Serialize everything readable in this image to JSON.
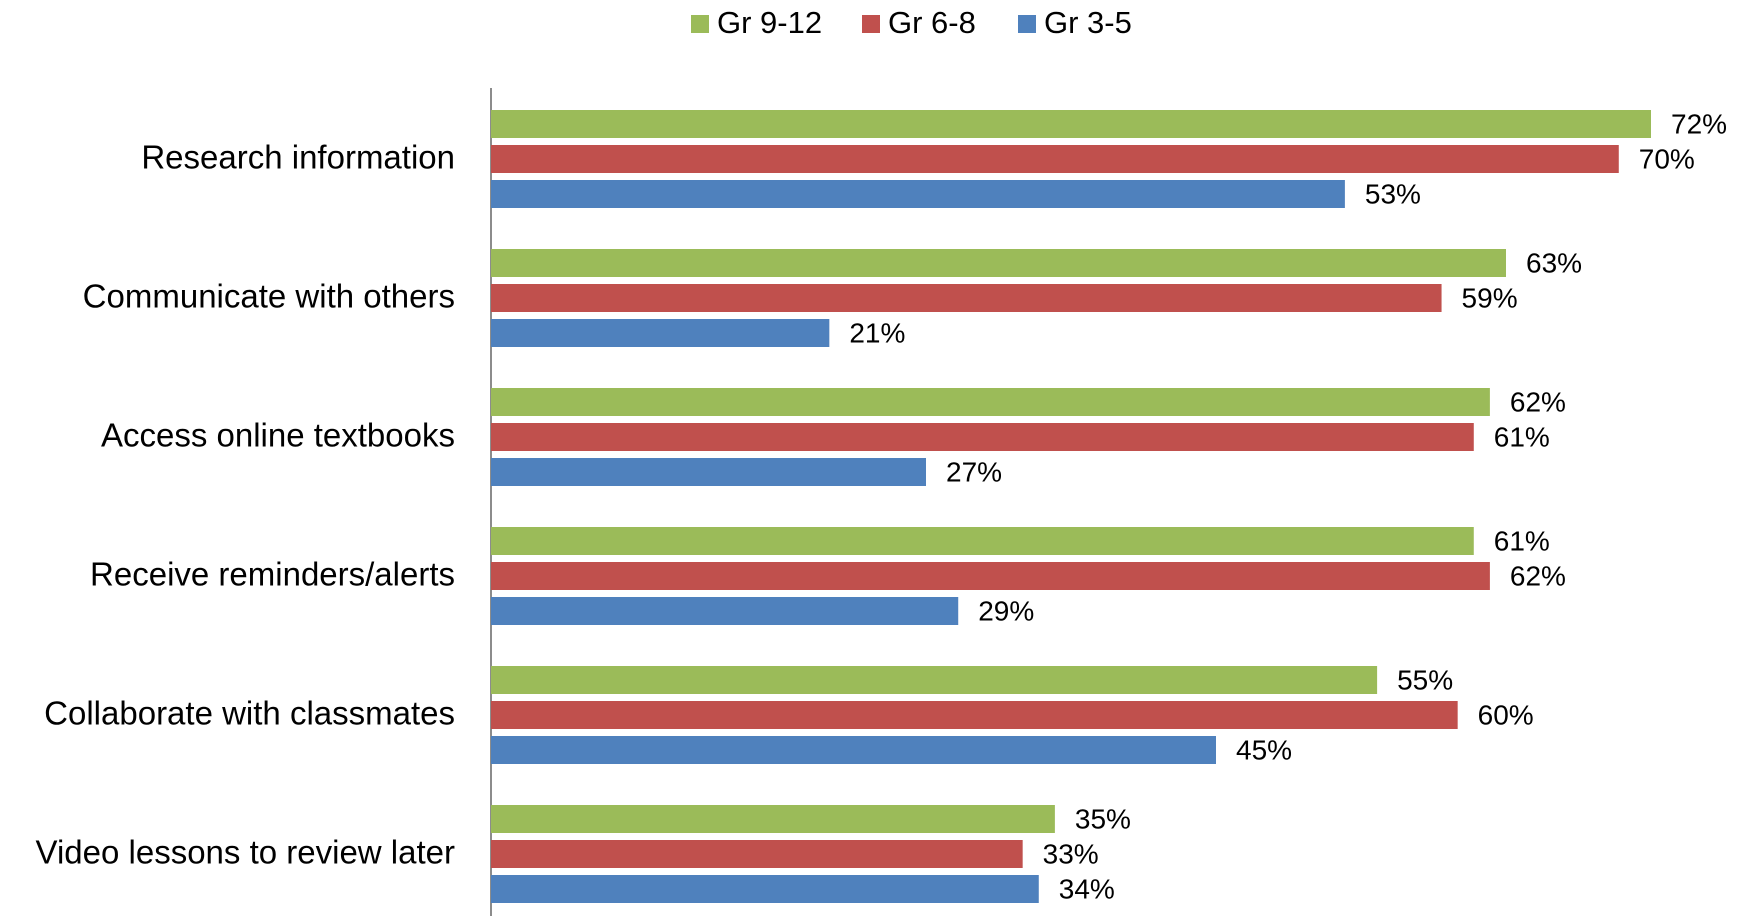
{
  "chart_data": {
    "type": "bar",
    "orientation": "horizontal",
    "title": "",
    "xlabel": "",
    "ylabel": "",
    "value_suffix": "%",
    "xlim": [
      0,
      72
    ],
    "grid": false,
    "legend_position": "top",
    "categories": [
      "Research information",
      "Communicate with others",
      "Access online textbooks",
      "Receive reminders/alerts",
      "Collaborate with classmates",
      "Video lessons to review later"
    ],
    "series": [
      {
        "name": "Gr 9-12",
        "color": "#9bbb59",
        "values": [
          72,
          63,
          62,
          61,
          55,
          35
        ]
      },
      {
        "name": "Gr 6-8",
        "color": "#c0504d",
        "values": [
          70,
          59,
          61,
          62,
          60,
          33
        ]
      },
      {
        "name": "Gr 3-5",
        "color": "#4f81bd",
        "values": [
          53,
          21,
          27,
          29,
          45,
          34
        ]
      }
    ]
  }
}
